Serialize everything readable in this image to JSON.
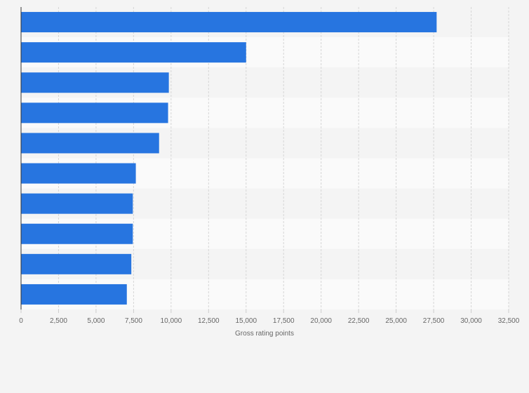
{
  "chart_data": {
    "type": "bar",
    "orientation": "horizontal",
    "title": "",
    "xlabel": "Gross rating points",
    "ylabel": "",
    "categories": [
      "",
      "",
      "",
      "",
      "",
      "",
      "",
      "",
      "",
      ""
    ],
    "values": [
      27700,
      15000,
      9850,
      9800,
      9200,
      7650,
      7450,
      7450,
      7350,
      7050
    ],
    "xlim": [
      0,
      32500
    ],
    "xticks": [
      0,
      2500,
      5000,
      7500,
      10000,
      12500,
      15000,
      17500,
      20000,
      22500,
      25000,
      27500,
      30000,
      32500
    ],
    "xtick_labels": [
      "0",
      "2,500",
      "5,000",
      "7,500",
      "10,000",
      "12,500",
      "15,000",
      "17,500",
      "20,000",
      "22,500",
      "25,000",
      "27,500",
      "30,000",
      "32,500"
    ],
    "grid": "vertical dashed",
    "bar_color": "#2775e0",
    "band_colors": [
      "#f4f4f4",
      "#fafafa"
    ],
    "legend": "none"
  }
}
